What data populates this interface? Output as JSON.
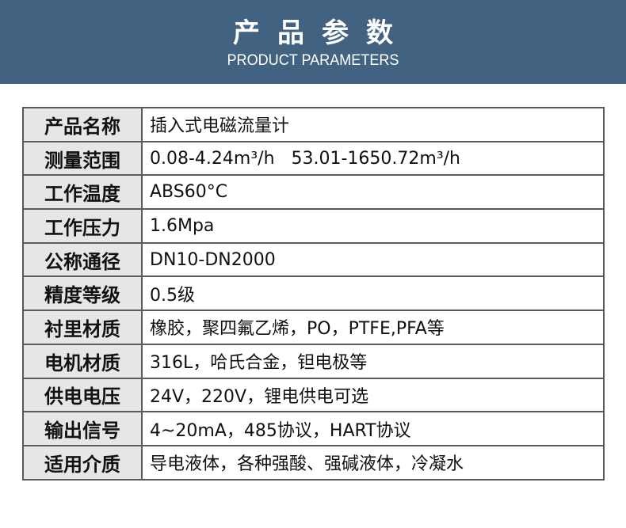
{
  "header": {
    "title_cn": "产品参数",
    "title_en": "PRODUCT PARAMETERS",
    "background": "#426282"
  },
  "params": [
    {
      "label": "产品名称",
      "value": "插入式电磁流量计"
    },
    {
      "label": "测量范围",
      "value": "0.08-4.24m³/h   53.01-1650.72m³/h"
    },
    {
      "label": "工作温度",
      "value": "ABS60°C"
    },
    {
      "label": "工作压力",
      "value": "1.6Mpa"
    },
    {
      "label": "公称通径",
      "value": "DN10-DN2000"
    },
    {
      "label": "精度等级",
      "value": "0.5级"
    },
    {
      "label": "衬里材质",
      "value": "橡胶，聚四氟乙烯，PO，PTFE,PFA等"
    },
    {
      "label": "电机材质",
      "value": "316L，哈氏合金，钽电极等"
    },
    {
      "label": "供电电压",
      "value": "24V，220V，锂电供电可选"
    },
    {
      "label": "输出信号",
      "value": "4~20mA，485协议，HART协议"
    },
    {
      "label": "适用介质",
      "value": "导电液体，各种强酸、强碱液体，冷凝水"
    }
  ]
}
